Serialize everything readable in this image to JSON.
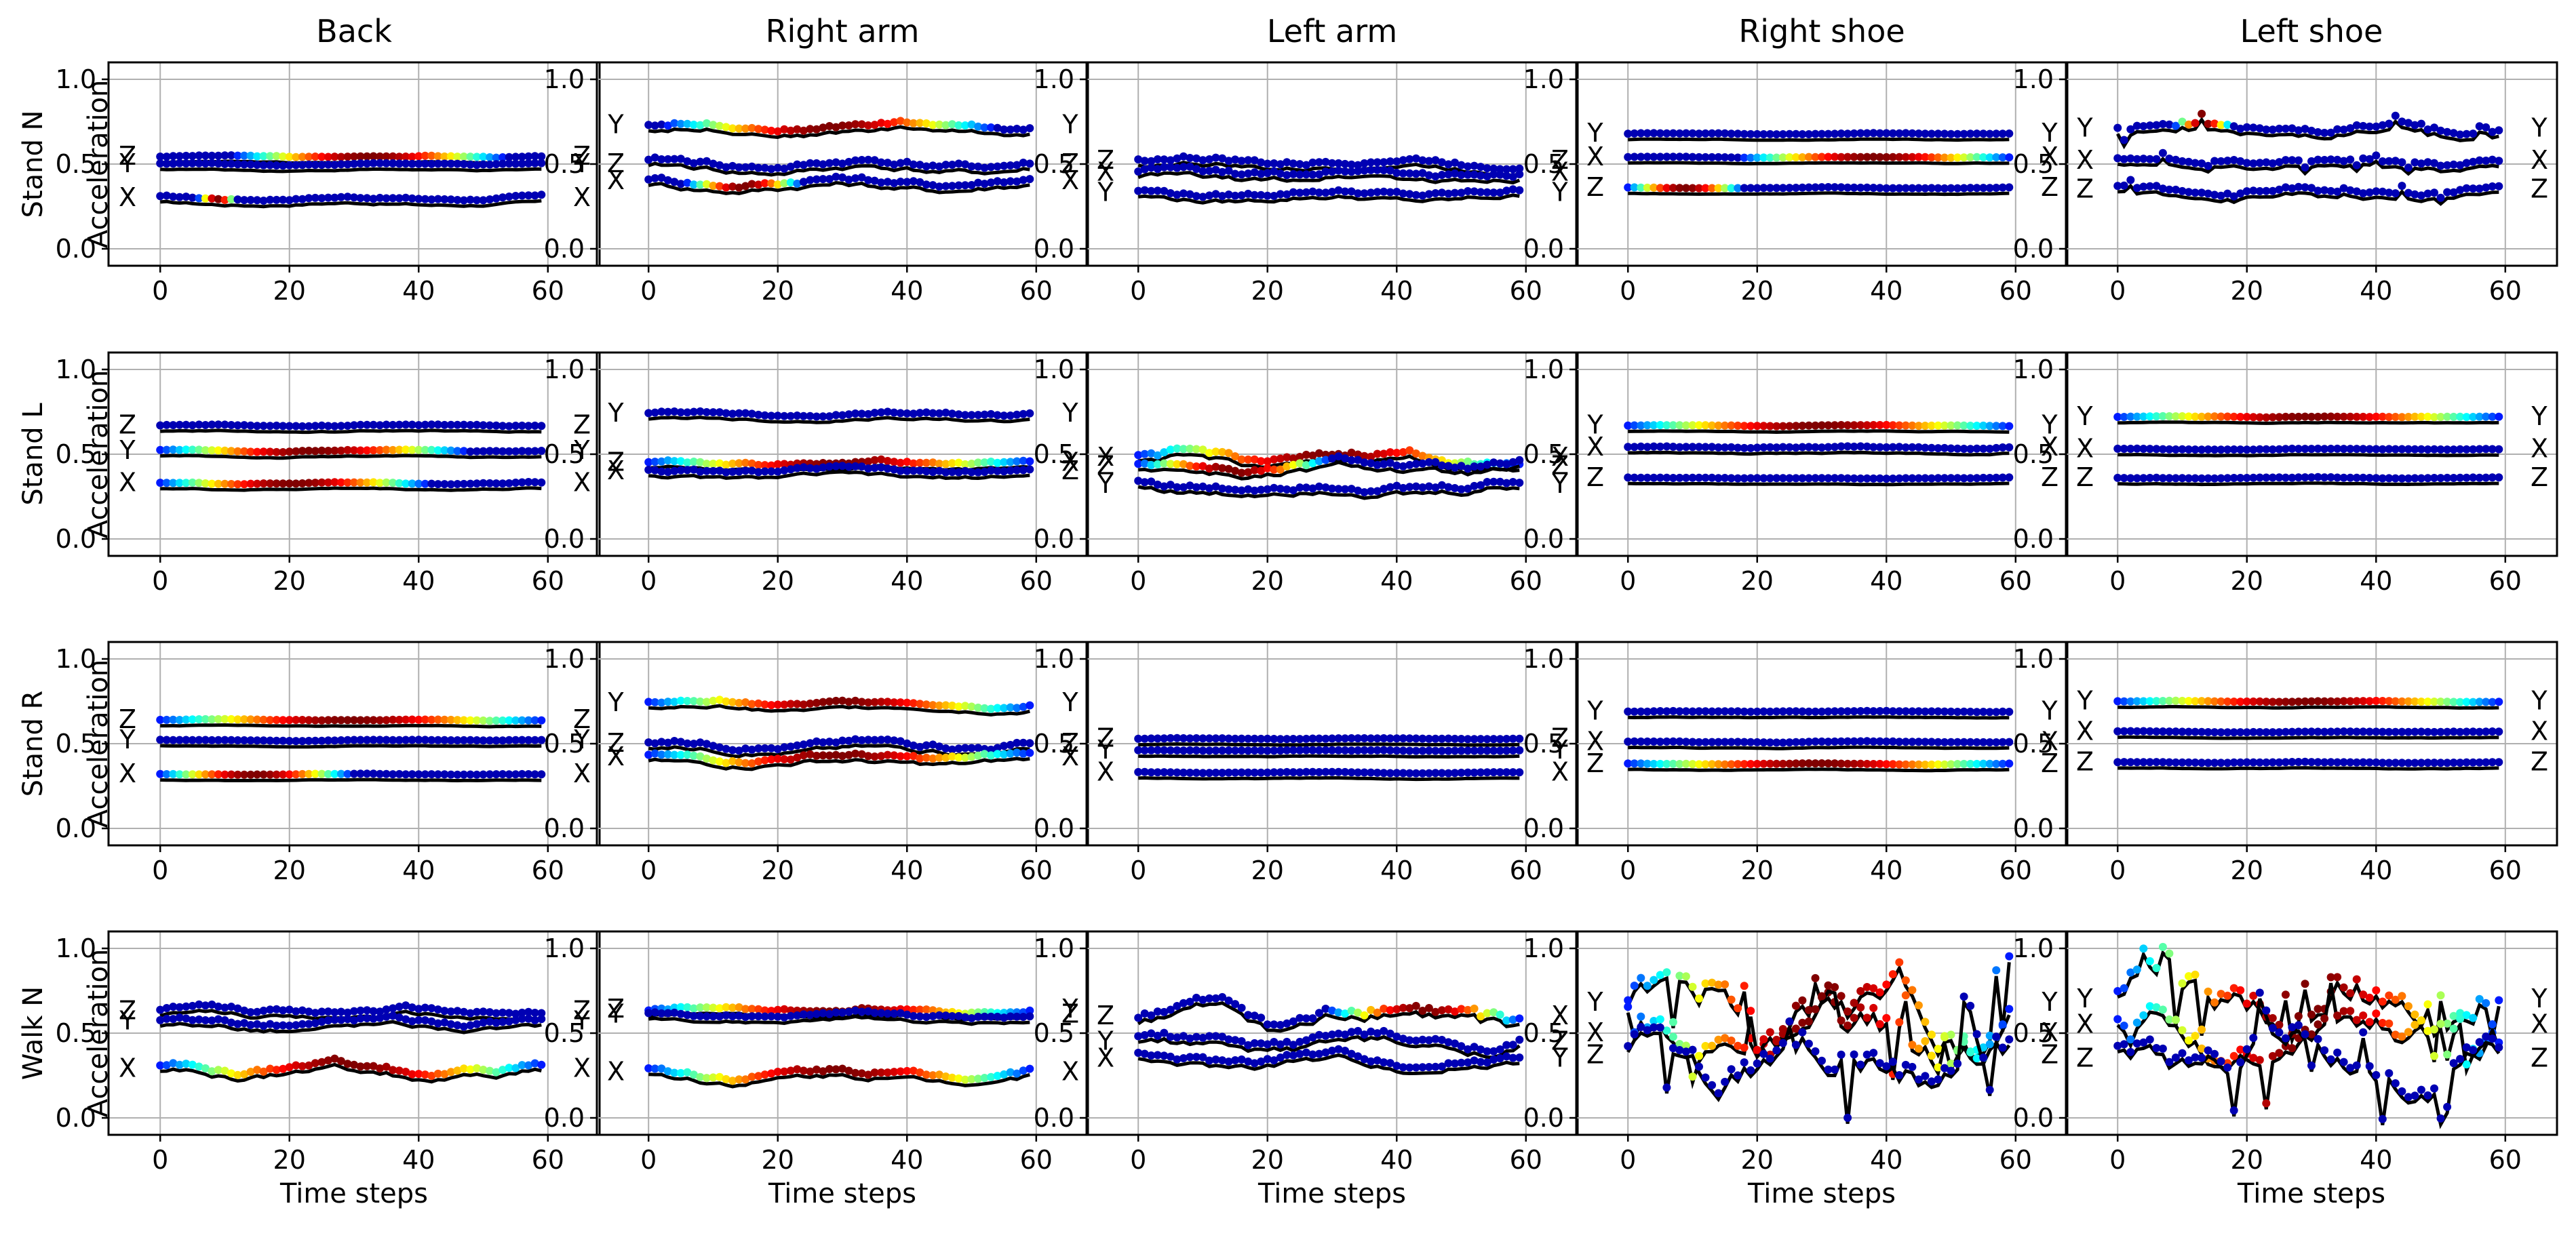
{
  "figure": {
    "columns": [
      "Back",
      "Right arm",
      "Left arm",
      "Right shoe",
      "Left shoe"
    ],
    "rows": [
      "Stand N",
      "Stand L",
      "Stand R",
      "Walk N"
    ],
    "ylabel": "Acceleration",
    "xlabel": "Time steps",
    "xticks": [
      0,
      20,
      40,
      60
    ],
    "yticks": [
      0.0,
      0.5,
      1.0
    ],
    "ytick_labels": [
      "0.0",
      "0.5",
      "1.0"
    ],
    "xlim": [
      -8,
      68
    ],
    "ylim": [
      -0.1,
      1.1
    ]
  },
  "chart_data": [
    {
      "type": "line",
      "title": "Back",
      "row": "Stand N",
      "x_range": [
        0,
        59
      ],
      "series": [
        {
          "name": "Z",
          "level": 0.545,
          "amp": 0.01,
          "hot": [
            0.2,
            0.9
          ],
          "left_label": "Z",
          "right_label": "Z"
        },
        {
          "name": "Y",
          "level": 0.5,
          "amp": 0.01,
          "hot": null,
          "left_label": "Y",
          "right_label": "Y"
        },
        {
          "name": "X",
          "level": 0.3,
          "amp": 0.02,
          "hot": [
            0.1,
            0.2
          ],
          "left_label": "X",
          "right_label": "X"
        }
      ]
    },
    {
      "type": "line",
      "title": "Right arm",
      "row": "Stand N",
      "x_range": [
        0,
        59
      ],
      "series": [
        {
          "name": "Y",
          "level": 0.73,
          "amp": 0.04,
          "hot": [
            0.05,
            0.9
          ],
          "left_label": "Y",
          "right_label": "Y"
        },
        {
          "name": "Z",
          "level": 0.5,
          "amp": 0.05,
          "hot": null,
          "left_label": "Z",
          "right_label": "Z"
        },
        {
          "name": "X",
          "level": 0.4,
          "amp": 0.05,
          "hot": [
            0.1,
            0.4
          ],
          "left_label": "X",
          "right_label": "X"
        }
      ]
    },
    {
      "type": "line",
      "title": "Left arm",
      "row": "Stand N",
      "x_range": [
        0,
        59
      ],
      "series": [
        {
          "name": "Z",
          "level": 0.52,
          "amp": 0.05,
          "hot": null,
          "left_label": "Z",
          "right_label": "Z"
        },
        {
          "name": "X",
          "level": 0.45,
          "amp": 0.05,
          "hot": null,
          "left_label": "X",
          "right_label": "X"
        },
        {
          "name": "Y",
          "level": 0.33,
          "amp": 0.04,
          "hot": null,
          "left_label": "Y",
          "right_label": "Y"
        }
      ]
    },
    {
      "type": "line",
      "title": "Right shoe",
      "row": "Stand N",
      "x_range": [
        0,
        59
      ],
      "series": [
        {
          "name": "Y",
          "level": 0.68,
          "amp": 0.005,
          "hot": null,
          "left_label": "Y",
          "right_label": "Y"
        },
        {
          "name": "X",
          "level": 0.54,
          "amp": 0.005,
          "hot": [
            0.3,
            1.0
          ],
          "left_label": "X",
          "right_label": "X"
        },
        {
          "name": "Z",
          "level": 0.36,
          "amp": 0.005,
          "hot": [
            0.0,
            0.3
          ],
          "left_label": "Z",
          "right_label": "Z"
        }
      ]
    },
    {
      "type": "line",
      "title": "Left shoe",
      "row": "Stand N",
      "x_range": [
        0,
        59
      ],
      "series": [
        {
          "name": "Y",
          "level": 0.71,
          "amp": 0.06,
          "hot": [
            0.15,
            0.3
          ],
          "left_label": "Y",
          "right_label": "Y",
          "spike": true
        },
        {
          "name": "X",
          "level": 0.52,
          "amp": 0.04,
          "hot": null,
          "left_label": "X",
          "right_label": "X",
          "spike": true
        },
        {
          "name": "Z",
          "level": 0.35,
          "amp": 0.04,
          "hot": null,
          "left_label": "Z",
          "right_label": "Z",
          "spike": true
        }
      ]
    },
    {
      "type": "line",
      "title": "Back",
      "row": "Stand L",
      "x_range": [
        0,
        59
      ],
      "series": [
        {
          "name": "Z",
          "level": 0.67,
          "amp": 0.01,
          "hot": null,
          "left_label": "Z",
          "right_label": "Z"
        },
        {
          "name": "Y",
          "level": 0.52,
          "amp": 0.01,
          "hot": [
            0.0,
            0.8
          ],
          "left_label": "Y",
          "right_label": "Y"
        },
        {
          "name": "X",
          "level": 0.33,
          "amp": 0.01,
          "hot": [
            0.0,
            0.7
          ],
          "left_label": "X",
          "right_label": "X"
        }
      ]
    },
    {
      "type": "line",
      "title": "Right arm",
      "row": "Stand L",
      "x_range": [
        0,
        59
      ],
      "series": [
        {
          "name": "Y",
          "level": 0.74,
          "amp": 0.02,
          "hot": null,
          "left_label": "Y",
          "right_label": "Y"
        },
        {
          "name": "X",
          "level": 0.45,
          "amp": 0.03,
          "hot": [
            0.0,
            1.0
          ],
          "left_label": "Z",
          "right_label": "X"
        },
        {
          "name": "Z",
          "level": 0.4,
          "amp": 0.03,
          "hot": null,
          "left_label": "X",
          "right_label": "Z"
        }
      ]
    },
    {
      "type": "line",
      "title": "Left arm",
      "row": "Stand L",
      "x_range": [
        0,
        59
      ],
      "series": [
        {
          "name": "X",
          "level": 0.48,
          "amp": 0.06,
          "hot": [
            0.0,
            1.0
          ],
          "left_label": "X",
          "right_label": "X"
        },
        {
          "name": "Z",
          "level": 0.43,
          "amp": 0.06,
          "hot": [
            0.0,
            0.5
          ],
          "left_label": "Z",
          "right_label": "Z"
        },
        {
          "name": "Y",
          "level": 0.32,
          "amp": 0.06,
          "hot": null,
          "left_label": "Y",
          "right_label": "Y"
        }
      ]
    },
    {
      "type": "line",
      "title": "Right shoe",
      "row": "Stand L",
      "x_range": [
        0,
        59
      ],
      "series": [
        {
          "name": "Y",
          "level": 0.67,
          "amp": 0.005,
          "hot": [
            0.0,
            1.0
          ],
          "left_label": "Y",
          "right_label": "Y"
        },
        {
          "name": "X",
          "level": 0.54,
          "amp": 0.01,
          "hot": null,
          "left_label": "X",
          "right_label": "X"
        },
        {
          "name": "Z",
          "level": 0.36,
          "amp": 0.005,
          "hot": null,
          "left_label": "Z",
          "right_label": "Z"
        }
      ]
    },
    {
      "type": "line",
      "title": "Left shoe",
      "row": "Stand L",
      "x_range": [
        0,
        59
      ],
      "series": [
        {
          "name": "Y",
          "level": 0.72,
          "amp": 0.005,
          "hot": [
            0.0,
            1.0
          ],
          "left_label": "Y",
          "right_label": "Y"
        },
        {
          "name": "X",
          "level": 0.53,
          "amp": 0.005,
          "hot": null,
          "left_label": "X",
          "right_label": "X"
        },
        {
          "name": "Z",
          "level": 0.36,
          "amp": 0.005,
          "hot": null,
          "left_label": "Z",
          "right_label": "Z"
        }
      ]
    },
    {
      "type": "line",
      "title": "Back",
      "row": "Stand R",
      "x_range": [
        0,
        59
      ],
      "series": [
        {
          "name": "Z",
          "level": 0.64,
          "amp": 0.005,
          "hot": [
            0.0,
            1.0
          ],
          "left_label": "Z",
          "right_label": "Z"
        },
        {
          "name": "Y",
          "level": 0.52,
          "amp": 0.005,
          "hot": null,
          "left_label": "Y",
          "right_label": "Y"
        },
        {
          "name": "X",
          "level": 0.32,
          "amp": 0.005,
          "hot": [
            0.0,
            0.5
          ],
          "left_label": "X",
          "right_label": "X"
        }
      ]
    },
    {
      "type": "line",
      "title": "Right arm",
      "row": "Stand R",
      "x_range": [
        0,
        59
      ],
      "series": [
        {
          "name": "Y",
          "level": 0.74,
          "amp": 0.03,
          "hot": [
            0.0,
            1.0
          ],
          "left_label": "Y",
          "right_label": "Y"
        },
        {
          "name": "Z",
          "level": 0.5,
          "amp": 0.04,
          "hot": null,
          "left_label": "Z",
          "right_label": "Z"
        },
        {
          "name": "X",
          "level": 0.42,
          "amp": 0.04,
          "hot": [
            0.0,
            1.0
          ],
          "left_label": "X",
          "right_label": "X"
        }
      ]
    },
    {
      "type": "line",
      "title": "Left arm",
      "row": "Stand R",
      "x_range": [
        0,
        59
      ],
      "series": [
        {
          "name": "Z",
          "level": 0.53,
          "amp": 0.005,
          "hot": null,
          "left_label": "Z",
          "right_label": "Z"
        },
        {
          "name": "Y",
          "level": 0.46,
          "amp": 0.005,
          "hot": null,
          "left_label": "Y",
          "right_label": "Y"
        },
        {
          "name": "X",
          "level": 0.33,
          "amp": 0.005,
          "hot": null,
          "left_label": "X",
          "right_label": "X"
        }
      ]
    },
    {
      "type": "line",
      "title": "Right shoe",
      "row": "Stand R",
      "x_range": [
        0,
        59
      ],
      "series": [
        {
          "name": "Y",
          "level": 0.69,
          "amp": 0.005,
          "hot": null,
          "left_label": "Y",
          "right_label": "Y"
        },
        {
          "name": "X",
          "level": 0.51,
          "amp": 0.005,
          "hot": null,
          "left_label": "X",
          "right_label": "X"
        },
        {
          "name": "Z",
          "level": 0.38,
          "amp": 0.005,
          "hot": [
            0.0,
            1.0
          ],
          "left_label": "Z",
          "right_label": "Z"
        }
      ]
    },
    {
      "type": "line",
      "title": "Left shoe",
      "row": "Stand R",
      "x_range": [
        0,
        59
      ],
      "series": [
        {
          "name": "Y",
          "level": 0.75,
          "amp": 0.005,
          "hot": [
            0.0,
            1.0
          ],
          "left_label": "Y",
          "right_label": "Y"
        },
        {
          "name": "X",
          "level": 0.57,
          "amp": 0.005,
          "hot": null,
          "left_label": "X",
          "right_label": "X"
        },
        {
          "name": "Z",
          "level": 0.39,
          "amp": 0.005,
          "hot": null,
          "left_label": "Z",
          "right_label": "Z"
        }
      ]
    },
    {
      "type": "line",
      "title": "Back",
      "row": "Walk N",
      "x_range": [
        0,
        59
      ],
      "series": [
        {
          "name": "Z",
          "level": 0.63,
          "amp": 0.04,
          "hot": null,
          "left_label": "Z",
          "right_label": "Z"
        },
        {
          "name": "Y",
          "level": 0.57,
          "amp": 0.04,
          "hot": null,
          "left_label": "Y",
          "right_label": "Y"
        },
        {
          "name": "X",
          "level": 0.29,
          "amp": 0.06,
          "hot": [
            0.0,
            1.0
          ],
          "left_label": "X",
          "right_label": "X"
        }
      ]
    },
    {
      "type": "line",
      "title": "Right arm",
      "row": "Walk N",
      "x_range": [
        0,
        59
      ],
      "series": [
        {
          "name": "Z",
          "level": 0.64,
          "amp": 0.03,
          "hot": [
            0.0,
            1.0
          ],
          "left_label": "Z",
          "right_label": "Y"
        },
        {
          "name": "Y",
          "level": 0.61,
          "amp": 0.03,
          "hot": null,
          "left_label": "Y",
          "right_label": "Z"
        },
        {
          "name": "X",
          "level": 0.27,
          "amp": 0.05,
          "hot": [
            0.0,
            1.0
          ],
          "left_label": "X",
          "right_label": "X"
        }
      ]
    },
    {
      "type": "line",
      "title": "Left arm",
      "row": "Walk N",
      "x_range": [
        0,
        59
      ],
      "series": [
        {
          "name": "X",
          "level": 0.6,
          "amp": 0.12,
          "hot": [
            0.5,
            1.0
          ],
          "left_label": "Z",
          "right_label": "X"
        },
        {
          "name": "Z",
          "level": 0.45,
          "amp": 0.08,
          "hot": null,
          "left_label": "Y",
          "right_label": "Z"
        },
        {
          "name": "Y",
          "level": 0.35,
          "amp": 0.06,
          "hot": null,
          "left_label": "X",
          "right_label": "Y"
        }
      ]
    },
    {
      "type": "line",
      "title": "Right shoe",
      "row": "Walk N",
      "x_range": [
        0,
        59
      ],
      "series": [
        {
          "name": "Y",
          "level": 0.68,
          "amp": 0.35,
          "hot": [
            0.0,
            1.0
          ],
          "left_label": "Y",
          "right_label": "Y",
          "spike": true
        },
        {
          "name": "X",
          "level": 0.5,
          "amp": 0.3,
          "hot": [
            0.0,
            1.0
          ],
          "left_label": "X",
          "right_label": "X",
          "spike": true
        },
        {
          "name": "Z",
          "level": 0.37,
          "amp": 0.3,
          "hot": null,
          "left_label": "Z",
          "right_label": "Z",
          "spike": true
        }
      ]
    },
    {
      "type": "line",
      "title": "Left shoe",
      "row": "Walk N",
      "x_range": [
        0,
        59
      ],
      "series": [
        {
          "name": "Y",
          "level": 0.7,
          "amp": 0.3,
          "hot": [
            0.0,
            1.0
          ],
          "left_label": "Y",
          "right_label": "Y",
          "spike": true
        },
        {
          "name": "X",
          "level": 0.55,
          "amp": 0.25,
          "hot": [
            0.0,
            1.0
          ],
          "left_label": "X",
          "right_label": "X",
          "spike": true
        },
        {
          "name": "Z",
          "level": 0.35,
          "amp": 0.25,
          "hot": null,
          "left_label": "Z",
          "right_label": "Z",
          "spike": true
        }
      ]
    }
  ]
}
